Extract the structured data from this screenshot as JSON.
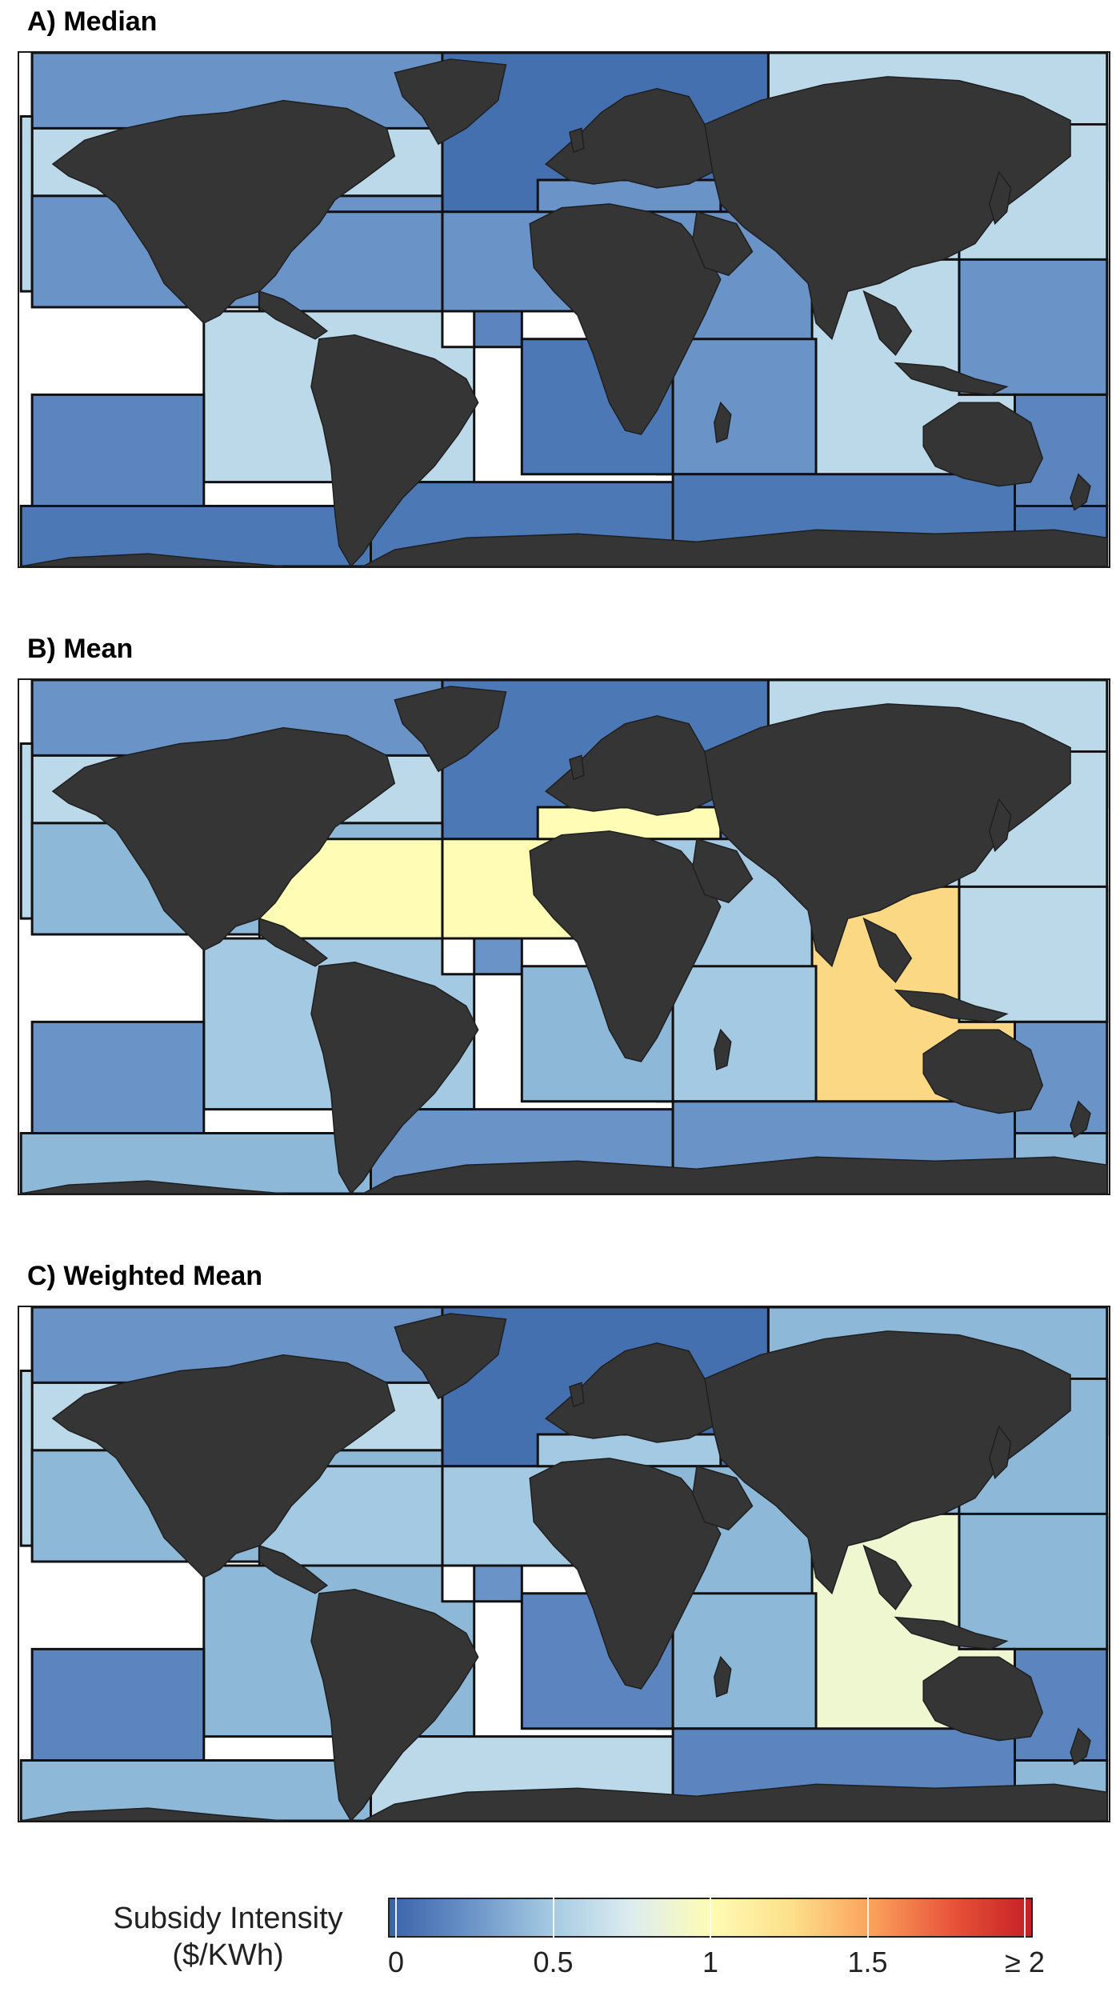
{
  "panels": [
    {
      "id": "A",
      "title": "A) Median",
      "zones": {
        "z_np_far_west": "#bcd9ea",
        "z_np_north": "#6a93c7",
        "z_na_north": "#4470b0",
        "z_np_east": "#bcd9ea",
        "z_np_ne": "#bcd9ea",
        "z_np_ne_south": "#5c84bf",
        "z_np_east_w": "#5c84bf",
        "z_np_central": "#6a93c7",
        "z_na_central": "#6a93c7",
        "z_car_gom": "#6a93c7",
        "z_med": "#6a93c7",
        "z_io_west": "#6a93c7",
        "z_io_east": "#bcd9ea",
        "z_wp_nw": "#6a93c7",
        "z_sp_central": "#bcd9ea",
        "z_sa_west": "#5c84bf",
        "z_sa_east": "#4d78b6",
        "z_io_sw": "#6a93c7",
        "z_sp_west": "#5c84bf",
        "z_sp_east": "#5c84bf",
        "z_so_west": "#4d78b6",
        "z_so_mid": "#4d78b6",
        "z_so_io": "#4d78b6",
        "z_so_east": "#4d78b6",
        "z_far_left": "#bcd9ea"
      }
    },
    {
      "id": "B",
      "title": "B) Mean",
      "zones": {
        "z_np_far_west": "#bcd9ea",
        "z_np_north": "#6a93c7",
        "z_na_north": "#4d78b6",
        "z_np_east": "#bcd9ea",
        "z_np_ne": "#bcd9ea",
        "z_np_ne_south": "#bcd9ea",
        "z_np_east_w": "#bcd9ea",
        "z_np_central": "#8db8d8",
        "z_na_central": "#fefcb5",
        "z_car_gom": "#fefcb5",
        "z_med": "#fefcb5",
        "z_io_west": "#a4c9e2",
        "z_io_east": "#fbd984",
        "z_wp_nw": "#bcd9ea",
        "z_sp_central": "#a4c9e2",
        "z_sa_west": "#6a93c7",
        "z_sa_east": "#8db8d8",
        "z_io_sw": "#a4c9e2",
        "z_sp_west": "#6a93c7",
        "z_sp_east": "#6a93c7",
        "z_so_west": "#8db8d8",
        "z_so_mid": "#6a93c7",
        "z_so_io": "#6a93c7",
        "z_so_east": "#8db8d8",
        "z_far_left": "#bcd9ea"
      }
    },
    {
      "id": "C",
      "title": "C) Weighted Mean",
      "zones": {
        "z_np_far_west": "#bcd9ea",
        "z_np_north": "#6a93c7",
        "z_na_north": "#4470b0",
        "z_np_east": "#8db8d8",
        "z_np_ne": "#8db8d8",
        "z_np_ne_south": "#bcd9ea",
        "z_np_east_w": "#bcd9ea",
        "z_np_central": "#8db8d8",
        "z_na_central": "#a4c9e2",
        "z_car_gom": "#a4c9e2",
        "z_med": "#a4c9e2",
        "z_io_west": "#8db8d8",
        "z_io_east": "#eff7d1",
        "z_wp_nw": "#8db8d8",
        "z_sp_central": "#8db8d8",
        "z_sa_west": "#6a93c7",
        "z_sa_east": "#5c84bf",
        "z_io_sw": "#8db8d8",
        "z_sp_west": "#5c84bf",
        "z_sp_east": "#5c84bf",
        "z_so_west": "#8db8d8",
        "z_so_mid": "#bcd9ea",
        "z_so_io": "#5c84bf",
        "z_so_east": "#8db8d8",
        "z_far_left": "#bcd9ea"
      }
    }
  ],
  "legend": {
    "title_line1": "Subsidy Intensity",
    "title_line2": "($/KWh)",
    "ticks": [
      {
        "label": "0",
        "value": 0
      },
      {
        "label": "0.5",
        "value": 0.5
      },
      {
        "label": "1",
        "value": 1
      },
      {
        "label": "1.5",
        "value": 1.5
      },
      {
        "label": "≥ 2",
        "value": 2
      }
    ],
    "range": [
      0,
      2
    ],
    "color_stops": [
      "#3a62aa",
      "#6a93c7",
      "#a4c9e2",
      "#dcecf0",
      "#fefcb5",
      "#fde08b",
      "#fba25c",
      "#e8553a",
      "#c51f24"
    ]
  }
}
